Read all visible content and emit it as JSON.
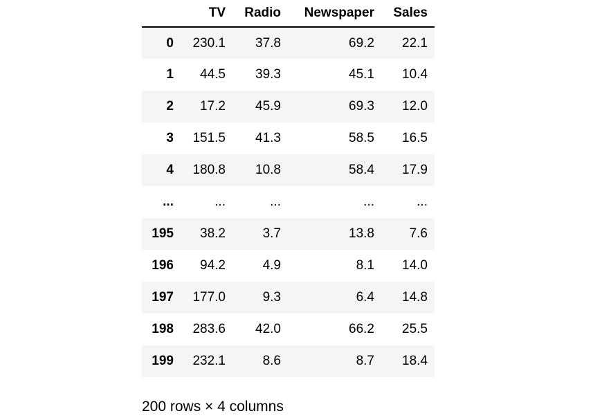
{
  "table": {
    "columns": [
      "",
      "TV",
      "Radio",
      "Newspaper",
      "Sales"
    ],
    "rows": [
      [
        "0",
        "230.1",
        "37.8",
        "69.2",
        "22.1"
      ],
      [
        "1",
        "44.5",
        "39.3",
        "45.1",
        "10.4"
      ],
      [
        "2",
        "17.2",
        "45.9",
        "69.3",
        "12.0"
      ],
      [
        "3",
        "151.5",
        "41.3",
        "58.5",
        "16.5"
      ],
      [
        "4",
        "180.8",
        "10.8",
        "58.4",
        "17.9"
      ],
      [
        "...",
        "...",
        "...",
        "...",
        "..."
      ],
      [
        "195",
        "38.2",
        "3.7",
        "13.8",
        "7.6"
      ],
      [
        "196",
        "94.2",
        "4.9",
        "8.1",
        "14.0"
      ],
      [
        "197",
        "177.0",
        "9.3",
        "6.4",
        "14.8"
      ],
      [
        "198",
        "283.6",
        "42.0",
        "66.2",
        "25.5"
      ],
      [
        "199",
        "232.1",
        "8.6",
        "8.7",
        "18.4"
      ]
    ]
  },
  "caption": "200 rows × 4 columns"
}
